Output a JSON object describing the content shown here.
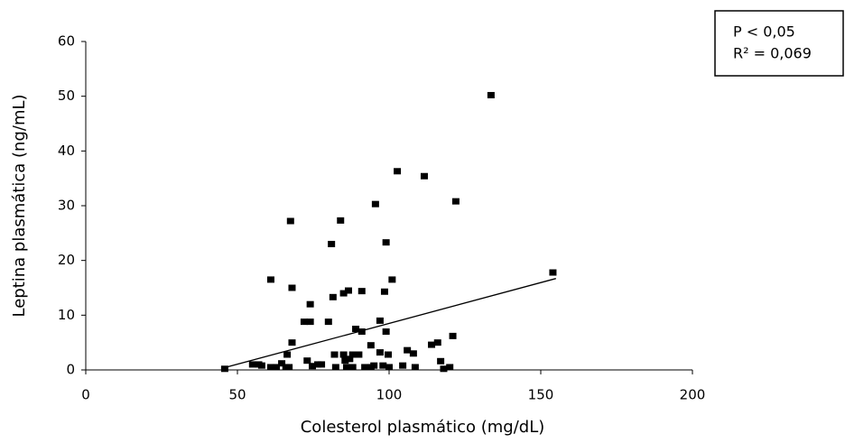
{
  "chart_data": {
    "type": "scatter",
    "x_label": "Colesterol plasmático (mg/dL)",
    "y_label": "Leptina plasmática (ng/mL)",
    "annotations": [
      "P < 0,05",
      "R² = 0,069"
    ],
    "xlim": [
      0,
      200
    ],
    "xticks": [
      0,
      50,
      100,
      150,
      200
    ],
    "ylim": [
      0,
      60
    ],
    "yticks": [
      0,
      10,
      20,
      30,
      40,
      50,
      60
    ],
    "grid": false,
    "color": "#000000",
    "x": [
      45.8,
      55,
      57,
      58,
      61,
      61,
      62.8,
      64.6,
      66,
      67,
      66.4,
      68,
      68,
      67.5,
      72,
      74,
      74,
      73,
      74.7,
      76.5,
      77.7,
      80,
      81,
      81.5,
      82,
      82.4,
      84,
      85,
      85,
      85.5,
      86,
      86.6,
      87,
      88,
      88,
      89,
      90,
      91,
      91,
      92,
      94,
      94,
      95,
      95.5,
      97,
      97,
      98,
      98.5,
      99,
      99,
      99.7,
      101,
      100,
      102.7,
      104.5,
      106,
      108,
      108.6,
      111.6,
      114,
      116,
      117,
      118,
      120,
      121,
      122,
      133.6,
      154
    ],
    "values": [
      0.2,
      1,
      1,
      0.8,
      0.5,
      16.5,
      0.5,
      1.2,
      0.5,
      0.5,
      2.8,
      15,
      5,
      27.2,
      8.8,
      8.8,
      12,
      1.7,
      0.7,
      1,
      1,
      8.8,
      23,
      13.3,
      2.8,
      0.5,
      27.3,
      14,
      2.8,
      1.7,
      0.5,
      14.5,
      2,
      2.8,
      0.5,
      7.5,
      2.8,
      14.4,
      7,
      0.5,
      0.5,
      4.5,
      0.8,
      30.3,
      9,
      3.2,
      0.8,
      14.3,
      23.3,
      7,
      2.8,
      16.5,
      0.5,
      36.3,
      0.8,
      3.6,
      3,
      0.5,
      35.4,
      4.6,
      5,
      1.6,
      0.2,
      0.5,
      6.2,
      30.8,
      50.2,
      17.8
    ],
    "trendline": {
      "x": [
        45,
        155
      ],
      "values": [
        0.3,
        16.7
      ]
    }
  }
}
